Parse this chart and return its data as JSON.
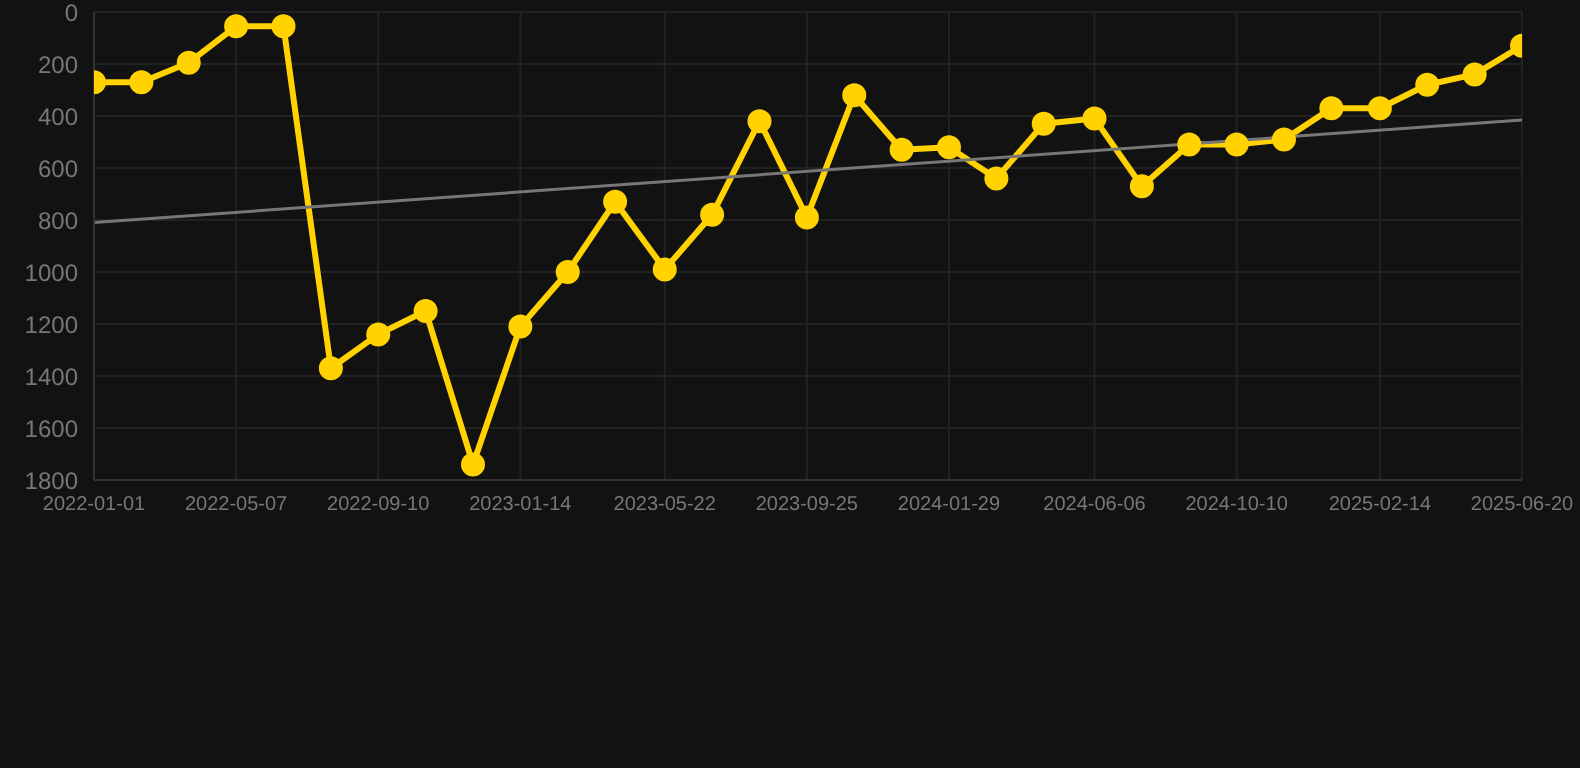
{
  "chart_data": {
    "type": "line",
    "x": [
      "2022-01-01",
      "2022-02-12",
      "2022-03-26",
      "2022-05-07",
      "2022-06-18",
      "2022-07-30",
      "2022-09-10",
      "2022-10-22",
      "2022-12-03",
      "2023-01-14",
      "2023-02-25",
      "2023-04-08",
      "2023-05-22",
      "2023-07-03",
      "2023-08-14",
      "2023-09-25",
      "2023-11-06",
      "2023-12-18",
      "2024-01-29",
      "2024-03-11",
      "2024-04-22",
      "2024-06-06",
      "2024-07-18",
      "2024-08-29",
      "2024-10-10",
      "2024-11-21",
      "2025-01-02",
      "2025-02-14",
      "2025-03-28",
      "2025-05-09",
      "2025-06-20"
    ],
    "series": [
      {
        "color": "#ffd200",
        "marker": "circle",
        "values": [
          270,
          270,
          195,
          55,
          55,
          1370,
          1240,
          1150,
          1740,
          1210,
          1000,
          730,
          990,
          780,
          420,
          790,
          320,
          530,
          520,
          640,
          430,
          410,
          670,
          510,
          510,
          490,
          370,
          370,
          280,
          240,
          130
        ]
      },
      {
        "type": "line",
        "color": "#777777",
        "marker": "none",
        "x": [
          "2022-01-01",
          "2025-06-20"
        ],
        "values": [
          810,
          415
        ]
      }
    ],
    "ylim": [
      1800,
      0
    ],
    "yticks": [
      0,
      200,
      400,
      600,
      800,
      1000,
      1200,
      1400,
      1600,
      1800
    ],
    "xlim": [
      "2022-01-01",
      "2025-06-20"
    ],
    "xticks": [
      "2022-01-01",
      "2022-05-07",
      "2022-09-10",
      "2023-01-14",
      "2023-05-22",
      "2023-09-25",
      "2024-01-29",
      "2024-06-06",
      "2024-10-10",
      "2025-02-14",
      "2025-06-20"
    ],
    "grid": true
  }
}
